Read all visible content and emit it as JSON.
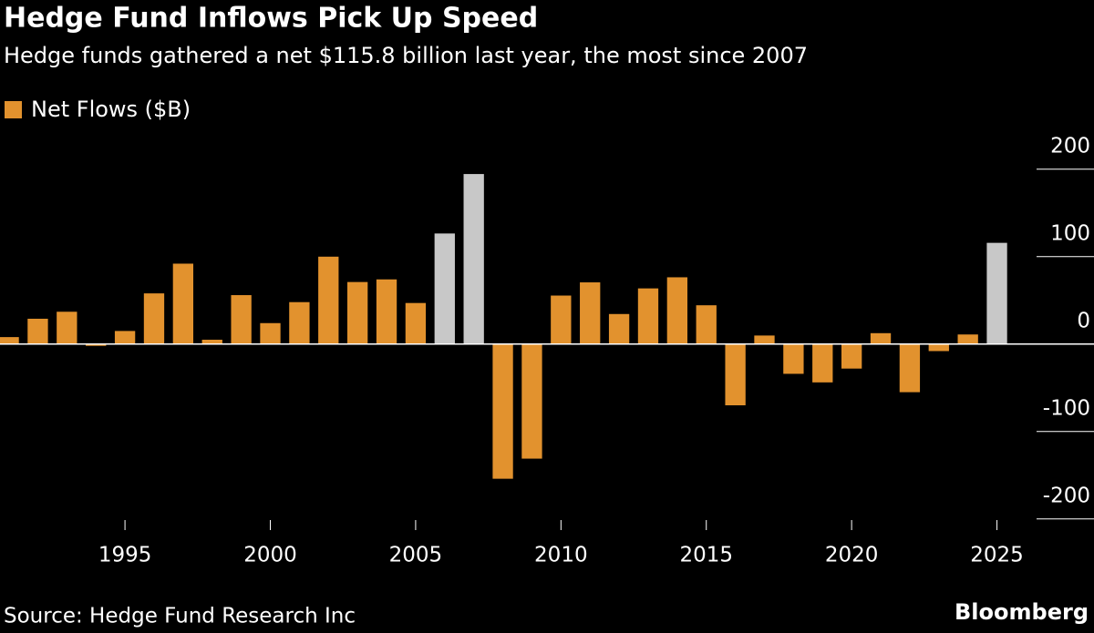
{
  "chart_data": {
    "type": "bar",
    "title": "Hedge Fund Inflows Pick Up Speed",
    "subtitle": "Hedge funds gathered a net $115.8 billion last year, the most since 2007",
    "source": "Source: Hedge Fund Research Inc",
    "brand": "Bloomberg",
    "x": [
      1991,
      1992,
      1993,
      1994,
      1995,
      1996,
      1997,
      1998,
      1999,
      2000,
      2001,
      2002,
      2003,
      2004,
      2005,
      2006,
      2007,
      2008,
      2009,
      2010,
      2011,
      2012,
      2013,
      2014,
      2015,
      2016,
      2017,
      2018,
      2019,
      2020,
      2021,
      2022,
      2023,
      2024,
      2025
    ],
    "series": [
      {
        "name": "Net Flows ($B)",
        "color": "#e2922e",
        "values": [
          8,
          29,
          37,
          -2,
          15,
          58,
          92,
          5,
          56,
          24,
          48,
          100,
          71,
          74,
          47,
          126.5,
          194.5,
          -154,
          -131,
          55.5,
          70.6,
          34.4,
          63.7,
          76.4,
          44.4,
          -70,
          9.8,
          -34,
          -43.8,
          -28,
          12.5,
          -55,
          -8,
          11,
          115.8
        ],
        "colors": [
          "#e2922e",
          "#e2922e",
          "#e2922e",
          "#e2922e",
          "#e2922e",
          "#e2922e",
          "#e2922e",
          "#e2922e",
          "#e2922e",
          "#e2922e",
          "#e2922e",
          "#e2922e",
          "#e2922e",
          "#e2922e",
          "#e2922e",
          "#c8c8c8",
          "#c8c8c8",
          "#e2922e",
          "#e2922e",
          "#e2922e",
          "#e2922e",
          "#e2922e",
          "#e2922e",
          "#e2922e",
          "#e2922e",
          "#e2922e",
          "#e2922e",
          "#e2922e",
          "#e2922e",
          "#e2922e",
          "#e2922e",
          "#e2922e",
          "#e2922e",
          "#e2922e",
          "#c8c8c8"
        ]
      }
    ],
    "xlim": [
      1990.7,
      2026.3
    ],
    "xticks": [
      1995,
      2000,
      2005,
      2010,
      2015,
      2020,
      2025
    ],
    "ylim": [
      -220,
      205
    ],
    "yticks": [
      -200,
      -100,
      0,
      100,
      200
    ]
  }
}
